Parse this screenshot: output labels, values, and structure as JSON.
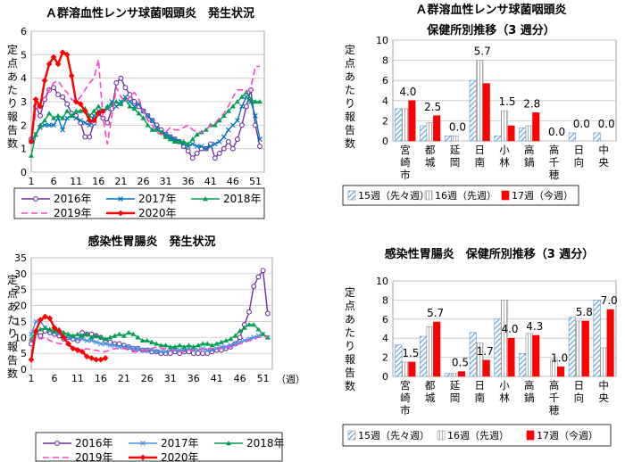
{
  "chart_data": [
    {
      "id": "strep-trend",
      "type": "line",
      "title": "Ａ群溶血性レンサ球菌咽頭炎　発生状況",
      "ylabel": "定点あたり報告数",
      "xlabel": "",
      "ylim": [
        0,
        6
      ],
      "yticks": [
        "0",
        "1",
        "2",
        "3",
        "4",
        "5",
        "6"
      ],
      "xlim": [
        1,
        53
      ],
      "xticks": [
        "1",
        "6",
        "11",
        "16",
        "21",
        "26",
        "31",
        "36",
        "41",
        "46",
        "51"
      ],
      "x_unit": "",
      "grid": true,
      "legend": "bottom",
      "series": [
        {
          "name": "2016年",
          "color": "#7030a0",
          "marker": "circle",
          "dash": "",
          "width": 1.4,
          "values": [
            1.4,
            2.8,
            2.4,
            3.1,
            3.5,
            3.6,
            3.3,
            3.2,
            2.9,
            2.5,
            2.4,
            2.1,
            1.5,
            1.5,
            2.1,
            2.5,
            2.3,
            2.1,
            2.7,
            3.8,
            4.0,
            3.6,
            3.3,
            3.0,
            2.8,
            2.6,
            2.4,
            2.2,
            2.0,
            1.8,
            1.6,
            1.5,
            1.4,
            1.3,
            1.1,
            0.9,
            0.6,
            0.8,
            1.0,
            1.0,
            1.2,
            0.6,
            0.8,
            1.0,
            1.3,
            1.0,
            1.4,
            2.0,
            2.8,
            3.5,
            2.0,
            1.1
          ]
        },
        {
          "name": "2017年",
          "color": "#0070c0",
          "marker": "x",
          "dash": "",
          "width": 1.4,
          "values": [
            1.3,
            1.6,
            1.9,
            2.0,
            2.0,
            2.0,
            2.3,
            1.8,
            2.3,
            2.4,
            2.3,
            2.2,
            2.1,
            2.0,
            2.4,
            2.6,
            2.6,
            2.7,
            3.0,
            2.8,
            3.0,
            3.2,
            3.0,
            2.8,
            2.9,
            2.6,
            2.4,
            2.2,
            1.9,
            1.7,
            1.6,
            1.5,
            1.4,
            1.3,
            1.2,
            1.1,
            1.2,
            1.1,
            1.1,
            1.0,
            1.1,
            1.2,
            1.3,
            1.5,
            1.8,
            2.0,
            2.2,
            2.8,
            3.2,
            3.0,
            2.4,
            1.4
          ]
        },
        {
          "name": "2018年",
          "color": "#00a050",
          "marker": "triangle",
          "dash": "",
          "width": 1.4,
          "values": [
            0.7,
            1.6,
            2.0,
            2.2,
            2.5,
            2.3,
            2.4,
            2.3,
            2.6,
            2.4,
            2.6,
            2.6,
            2.7,
            2.4,
            2.6,
            2.8,
            2.6,
            2.8,
            2.9,
            3.0,
            2.9,
            3.1,
            2.8,
            2.7,
            2.5,
            2.3,
            2.0,
            1.8,
            1.8,
            1.7,
            1.5,
            1.4,
            1.3,
            1.3,
            1.3,
            1.2,
            1.4,
            1.6,
            1.7,
            1.8,
            2.0,
            2.0,
            2.2,
            2.4,
            2.6,
            2.8,
            3.0,
            3.2,
            3.4,
            3.1,
            3.0,
            3.0
          ]
        },
        {
          "name": "2019年",
          "color": "#ff44cc",
          "marker": "none",
          "dash": "7,4",
          "width": 1.6,
          "values": [
            1.4,
            2.5,
            3.0,
            3.2,
            3.5,
            3.8,
            3.9,
            3.6,
            3.4,
            3.1,
            3.0,
            3.2,
            3.5,
            3.8,
            4.0,
            4.8,
            2.3,
            1.2,
            2.4,
            3.6,
            3.2,
            3.0,
            3.2,
            3.4,
            3.1,
            2.6,
            2.2,
            2.0,
            1.7,
            1.6,
            1.7,
            1.9,
            1.8,
            1.8,
            1.9,
            2.0,
            1.8,
            1.7,
            1.7,
            1.8,
            2.0,
            2.1,
            2.3,
            2.5,
            2.8,
            3.2,
            3.5,
            3.5,
            3.4,
            3.6,
            4.5,
            4.5
          ]
        },
        {
          "name": "2020年",
          "color": "#ff0000",
          "marker": "diamond",
          "dash": "",
          "width": 2.4,
          "values": [
            1.3,
            3.1,
            2.8,
            3.9,
            4.6,
            4.9,
            4.6,
            5.1,
            5.0,
            4.1,
            3.0,
            2.9,
            2.6,
            2.2,
            2.2,
            2.5,
            2.6,
            null,
            null,
            null,
            null,
            null,
            null,
            null,
            null,
            null,
            null,
            null,
            null,
            null,
            null,
            null,
            null,
            null,
            null,
            null,
            null,
            null,
            null,
            null,
            null,
            null,
            null,
            null,
            null,
            null,
            null,
            null,
            null,
            null,
            null,
            null
          ]
        }
      ]
    },
    {
      "id": "strep-bars",
      "type": "bar",
      "title": "Ａ群溶血性レンサ球菌咽頭炎",
      "subtitle": "保健所別推移（3 週分）",
      "ylabel": "定点あたり報告数",
      "ylim": [
        0,
        10
      ],
      "yticks": [
        "0",
        "2",
        "4",
        "6",
        "8",
        "10"
      ],
      "grid": true,
      "legend": "bottom",
      "categories": [
        "宮崎市",
        "都城",
        "延岡",
        "日南",
        "小林",
        "高鍋",
        "高千穂",
        "日向",
        "中央"
      ],
      "series": [
        {
          "name": "15週（先々週）",
          "fill": "hatch",
          "color": "#5b9bd5",
          "values": [
            3.2,
            1.5,
            0.5,
            6.0,
            0.5,
            1.3,
            0.0,
            0.8,
            0.8
          ]
        },
        {
          "name": "16週（先週）",
          "fill": "hatch-gray",
          "color": "#a0a0a0",
          "values": [
            3.2,
            1.8,
            0.5,
            8.0,
            3.0,
            1.5,
            0.0,
            0.0,
            0.0
          ]
        },
        {
          "name": "17週（今週）",
          "fill": "solid",
          "color": "#ff0000",
          "values": [
            4.0,
            2.5,
            0.0,
            5.7,
            1.5,
            2.8,
            0.0,
            0.0,
            0.0
          ]
        }
      ],
      "data_labels": [
        "4.0",
        "2.5",
        "0.0",
        "5.7",
        "1.5",
        "2.8",
        "0.0",
        "0.0",
        "0.0"
      ]
    },
    {
      "id": "gastro-trend",
      "type": "line",
      "title": "感染性胃腸炎　発生状況",
      "ylabel": "定点あたり報告数",
      "xlabel": "",
      "ylim": [
        0,
        35
      ],
      "yticks": [
        "0",
        "5",
        "10",
        "15",
        "20",
        "25",
        "30",
        "35"
      ],
      "xlim": [
        1,
        53
      ],
      "xticks": [
        "1",
        "6",
        "11",
        "16",
        "21",
        "26",
        "31",
        "36",
        "41",
        "46",
        "51"
      ],
      "x_unit": "（週）",
      "grid": true,
      "legend": "bottom",
      "series": [
        {
          "name": "2016年",
          "color": "#7030a0",
          "marker": "circle",
          "dash": "",
          "width": 1.4,
          "values": [
            8.0,
            11.5,
            10.5,
            12.0,
            11.5,
            11.0,
            10.5,
            9.5,
            10.0,
            9.5,
            9.0,
            11.5,
            11.0,
            11.0,
            10.5,
            10.0,
            9.0,
            8.5,
            8.0,
            8.0,
            7.5,
            7.0,
            6.5,
            6.5,
            6.0,
            6.0,
            5.5,
            5.5,
            5.0,
            5.0,
            5.0,
            5.5,
            5.0,
            5.5,
            5.5,
            5.0,
            5.0,
            5.0,
            5.0,
            5.5,
            6.0,
            6.0,
            6.5,
            7.0,
            8.0,
            10.0,
            14.0,
            18.0,
            26.0,
            29.0,
            31.0,
            17.5
          ]
        },
        {
          "name": "2017年",
          "color": "#4a90e2",
          "marker": "x",
          "dash": "",
          "width": 1.4,
          "values": [
            11.0,
            15.0,
            15.0,
            13.0,
            12.0,
            11.5,
            11.0,
            10.5,
            10.0,
            10.0,
            9.5,
            9.5,
            9.0,
            9.0,
            8.5,
            8.0,
            8.0,
            7.5,
            7.5,
            7.0,
            7.0,
            7.0,
            6.5,
            6.5,
            6.0,
            6.0,
            6.0,
            5.5,
            5.5,
            5.5,
            6.0,
            6.0,
            6.0,
            6.0,
            6.5,
            6.0,
            6.0,
            6.5,
            6.0,
            6.0,
            6.5,
            7.0,
            7.0,
            7.5,
            8.0,
            8.5,
            9.0,
            9.5,
            10.0,
            10.5,
            11.0,
            10.0
          ]
        },
        {
          "name": "2018年",
          "color": "#00a050",
          "marker": "triangle",
          "dash": "",
          "width": 1.4,
          "values": [
            9.5,
            12.0,
            12.5,
            13.0,
            12.5,
            12.0,
            12.5,
            11.5,
            11.0,
            10.5,
            11.0,
            10.5,
            11.0,
            10.0,
            10.5,
            10.0,
            9.5,
            10.0,
            10.5,
            11.0,
            10.5,
            11.5,
            11.0,
            10.0,
            9.0,
            9.0,
            8.5,
            8.0,
            7.5,
            7.5,
            7.0,
            7.0,
            7.5,
            7.0,
            7.5,
            7.0,
            7.5,
            8.0,
            8.0,
            7.5,
            8.0,
            8.5,
            9.0,
            9.5,
            10.5,
            12.0,
            13.0,
            14.0,
            14.0,
            12.5,
            11.0,
            10.0
          ]
        },
        {
          "name": "2019年",
          "color": "#ff44cc",
          "marker": "none",
          "dash": "7,4",
          "width": 1.6,
          "values": [
            9.0,
            10.5,
            9.5,
            10.0,
            9.0,
            8.5,
            8.0,
            8.0,
            7.5,
            7.0,
            6.5,
            6.0,
            6.5,
            6.0,
            6.0,
            5.5,
            5.5,
            6.0,
            6.5,
            6.5,
            6.5,
            6.0,
            5.5,
            5.5,
            6.0,
            6.0,
            6.5,
            7.0,
            6.5,
            6.5,
            6.0,
            6.0,
            5.5,
            5.5,
            6.0,
            6.0,
            6.0,
            6.5,
            6.5,
            6.5,
            6.5,
            6.5,
            7.0,
            7.0,
            7.5,
            8.0,
            8.5,
            9.0,
            9.5,
            10.0,
            10.5,
            10.0
          ]
        },
        {
          "name": "2020年",
          "color": "#ff0000",
          "marker": "diamond",
          "dash": "",
          "width": 2.4,
          "values": [
            3.0,
            12.0,
            15.5,
            16.5,
            16.0,
            13.0,
            12.0,
            10.0,
            8.0,
            6.5,
            6.0,
            5.5,
            4.0,
            3.5,
            3.0,
            3.0,
            3.5,
            null,
            null,
            null,
            null,
            null,
            null,
            null,
            null,
            null,
            null,
            null,
            null,
            null,
            null,
            null,
            null,
            null,
            null,
            null,
            null,
            null,
            null,
            null,
            null,
            null,
            null,
            null,
            null,
            null,
            null,
            null,
            null,
            null,
            null,
            null
          ]
        }
      ]
    },
    {
      "id": "gastro-bars",
      "type": "bar",
      "title": "感染性胃腸炎　保健所別推移（3 週分）",
      "subtitle": "",
      "ylabel": "定点あたり報告数",
      "ylim": [
        0,
        10
      ],
      "yticks": [
        "0",
        "2",
        "4",
        "6",
        "8",
        "10"
      ],
      "grid": true,
      "legend": "bottom",
      "categories": [
        "宮崎市",
        "都城",
        "延岡",
        "日南",
        "小林",
        "高鍋",
        "高千穂",
        "日向",
        "中央"
      ],
      "series": [
        {
          "name": "15週（先々週）",
          "fill": "hatch",
          "color": "#5b9bd5",
          "values": [
            3.3,
            4.2,
            0.3,
            4.6,
            6.0,
            2.4,
            0.0,
            6.2,
            8.0
          ]
        },
        {
          "name": "16週（先週）",
          "fill": "hatch-gray",
          "color": "#a0a0a0",
          "values": [
            1.5,
            5.2,
            0.3,
            3.5,
            8.0,
            4.5,
            1.8,
            5.8,
            3.0
          ]
        },
        {
          "name": "17週（今週）",
          "fill": "solid",
          "color": "#ff0000",
          "values": [
            1.5,
            5.7,
            0.5,
            1.7,
            4.0,
            4.3,
            1.0,
            5.8,
            7.0
          ]
        }
      ],
      "data_labels": [
        "1.5",
        "5.7",
        "0.5",
        "1.7",
        "4.0",
        "4.3",
        "1.0",
        "5.8",
        "7.0"
      ]
    }
  ]
}
